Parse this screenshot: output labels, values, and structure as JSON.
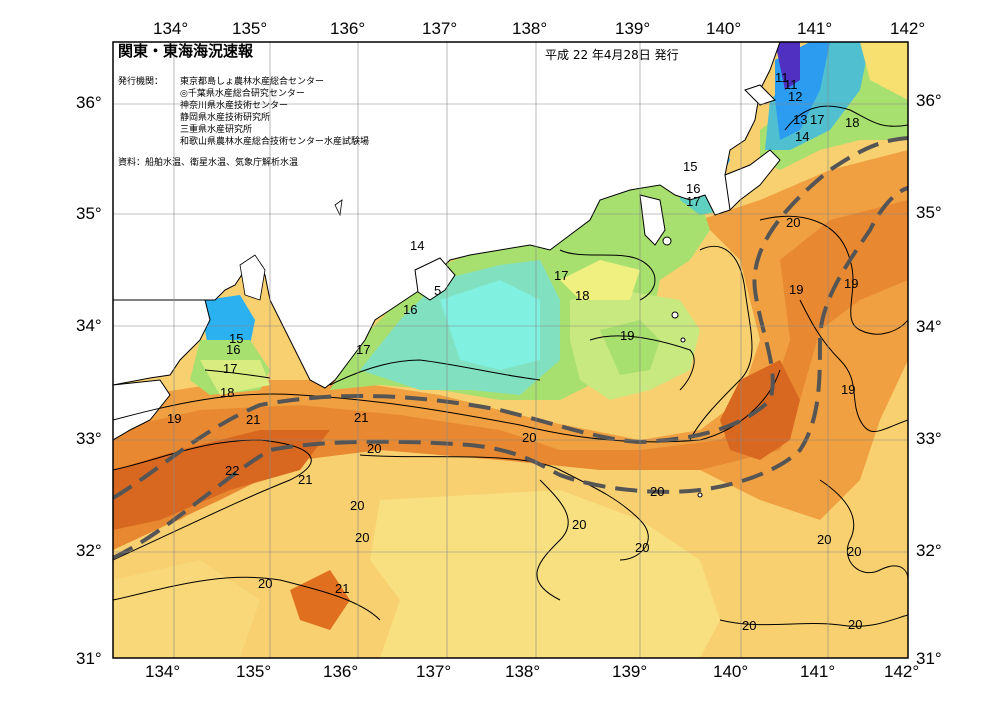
{
  "header": {
    "title": "関東・東海海況速報",
    "date": "平成 22 年4月28日 発行",
    "institutions_label": "発行機関：",
    "institutions": [
      "東京都島しょ農林水産総合センター",
      "◎千葉県水産総合研究センター",
      "神奈川県水産技術センター",
      "静岡県水産技術研究所",
      "三重県水産研究所",
      "和歌山県農林水産総合技術センター水産試験場"
    ],
    "source": "資料：船舶水温、衛星水温、気象庁解析水温"
  },
  "axes": {
    "longitudes": [
      "134°",
      "135°",
      "136°",
      "137°",
      "138°",
      "139°",
      "140°",
      "141°",
      "142°"
    ],
    "latitudes": [
      "36°",
      "35°",
      "34°",
      "33°",
      "32°",
      "31°"
    ],
    "lat_bottom_right": "31°"
  },
  "isotherm_labels": [
    {
      "text": "11"
    },
    {
      "text": "11"
    },
    {
      "text": "12"
    },
    {
      "text": "13"
    },
    {
      "text": "17"
    },
    {
      "text": "14"
    },
    {
      "text": "18"
    },
    {
      "text": "15"
    },
    {
      "text": "16"
    },
    {
      "text": "17"
    },
    {
      "text": "14"
    },
    {
      "text": "5"
    },
    {
      "text": "16"
    },
    {
      "text": "17"
    },
    {
      "text": "18"
    },
    {
      "text": "19"
    },
    {
      "text": "15"
    },
    {
      "text": "16"
    },
    {
      "text": "17"
    },
    {
      "text": "18"
    },
    {
      "text": "17"
    },
    {
      "text": "20"
    },
    {
      "text": "19"
    },
    {
      "text": "19"
    },
    {
      "text": "19"
    },
    {
      "text": "19"
    },
    {
      "text": "21"
    },
    {
      "text": "21"
    },
    {
      "text": "20"
    },
    {
      "text": "20"
    },
    {
      "text": "22"
    },
    {
      "text": "21"
    },
    {
      "text": "20"
    },
    {
      "text": "20"
    },
    {
      "text": "20"
    },
    {
      "text": "20"
    },
    {
      "text": "20"
    },
    {
      "text": "20"
    },
    {
      "text": "20"
    },
    {
      "text": "20"
    },
    {
      "text": "21"
    },
    {
      "text": "20"
    },
    {
      "text": "20"
    }
  ],
  "colors": {
    "land": "#ffffff",
    "water_blue": "#2b9cf0",
    "water_cyan": "#80f0e0",
    "water_green": "#a8e070",
    "water_yellow": "#f8e070",
    "water_lightorange": "#f8c050",
    "water_orange": "#f09030",
    "water_darkorange": "#e06820",
    "water_purple": "#5030c0",
    "kuroshio_path": "#555555"
  }
}
